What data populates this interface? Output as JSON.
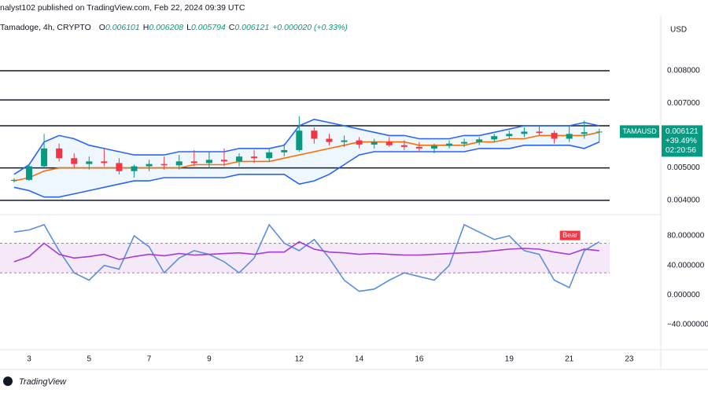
{
  "header": {
    "published": "nalyst102 published on TradingView.com, Feb 22, 2024 09:39 UTC",
    "symbol": "Tamadoge, 4h, CRYPTO",
    "ohlc": [
      {
        "label": "O",
        "value": "0.006101"
      },
      {
        "label": "H",
        "value": "0.006208"
      },
      {
        "label": "L",
        "value": "0.005794"
      },
      {
        "label": "C",
        "value": "0.006121"
      }
    ],
    "change": "+0.000020 (+0.33%)",
    "currency": "USD"
  },
  "footer": {
    "brand": "TradingView"
  },
  "chart_data": [
    {
      "type": "candlestick",
      "xlim": [
        2.03,
        24.05
      ],
      "ylim": [
        0.00368,
        0.00965
      ],
      "yticks": [
        {
          "value": 0.008,
          "label": "0.008000"
        },
        {
          "value": 0.007,
          "label": "0.007000"
        },
        {
          "value": 0.005,
          "label": "0.005000"
        },
        {
          "value": 0.004,
          "label": "0.004000"
        }
      ],
      "hlines": [
        0.008,
        0.0071,
        0.0063,
        0.005,
        0.004
      ],
      "x": [
        2.5,
        3,
        3.5,
        4,
        4.5,
        5,
        5.5,
        6,
        6.5,
        7,
        7.5,
        8,
        8.5,
        9,
        9.5,
        10,
        10.5,
        11,
        11.5,
        12,
        12.5,
        13,
        13.5,
        14,
        14.5,
        15,
        15.5,
        16,
        16.5,
        17,
        17.5,
        18,
        18.5,
        19,
        19.5,
        20,
        20.5,
        21,
        21.5,
        22
      ],
      "open": [
        0.0046,
        0.00463,
        0.00505,
        0.0056,
        0.0053,
        0.00512,
        0.0052,
        0.00515,
        0.0049,
        0.00505,
        0.00512,
        0.00508,
        0.0052,
        0.00515,
        0.00525,
        0.0052,
        0.00535,
        0.0053,
        0.00548,
        0.00555,
        0.00615,
        0.0059,
        0.0058,
        0.00585,
        0.00572,
        0.0058,
        0.0057,
        0.00565,
        0.0056,
        0.00568,
        0.00575,
        0.0058,
        0.00588,
        0.00598,
        0.00605,
        0.00612,
        0.00608,
        0.0059,
        0.00605,
        0.006101
      ],
      "high": [
        0.00468,
        0.0051,
        0.00605,
        0.00575,
        0.00545,
        0.00535,
        0.0056,
        0.0053,
        0.0051,
        0.00525,
        0.00535,
        0.0054,
        0.00555,
        0.0055,
        0.0056,
        0.00545,
        0.00555,
        0.0056,
        0.00575,
        0.0066,
        0.00625,
        0.00605,
        0.006,
        0.00595,
        0.0059,
        0.00595,
        0.00585,
        0.0058,
        0.00575,
        0.00585,
        0.0059,
        0.00595,
        0.00605,
        0.00615,
        0.00625,
        0.0063,
        0.00615,
        0.0063,
        0.00645,
        0.006208
      ],
      "low": [
        0.00455,
        0.0046,
        0.005,
        0.0052,
        0.005,
        0.00495,
        0.00505,
        0.0048,
        0.0047,
        0.0049,
        0.00495,
        0.00495,
        0.00505,
        0.005,
        0.00505,
        0.00505,
        0.00515,
        0.0052,
        0.00535,
        0.0055,
        0.00575,
        0.0057,
        0.00565,
        0.0056,
        0.0056,
        0.00565,
        0.00555,
        0.0055,
        0.00545,
        0.0056,
        0.00565,
        0.0057,
        0.00578,
        0.0059,
        0.00595,
        0.006,
        0.00575,
        0.0058,
        0.0059,
        0.005794
      ],
      "close": [
        0.00463,
        0.00505,
        0.0056,
        0.0053,
        0.00512,
        0.0052,
        0.00515,
        0.0049,
        0.00505,
        0.00512,
        0.00508,
        0.0052,
        0.00515,
        0.00525,
        0.0052,
        0.00535,
        0.0053,
        0.00548,
        0.00555,
        0.00615,
        0.0059,
        0.0058,
        0.00585,
        0.00572,
        0.0058,
        0.0057,
        0.00565,
        0.0056,
        0.00568,
        0.00575,
        0.0058,
        0.00588,
        0.00598,
        0.00605,
        0.00612,
        0.00608,
        0.0059,
        0.00605,
        0.006101,
        0.006121
      ],
      "up_color": "#089981",
      "down_color": "#f23645",
      "series": [
        {
          "color": "#2962ff",
          "values": [
            0.0048,
            0.0051,
            0.0058,
            0.006,
            0.0059,
            0.0057,
            0.0056,
            0.0055,
            0.0054,
            0.0054,
            0.0054,
            0.0055,
            0.0055,
            0.0055,
            0.0055,
            0.0056,
            0.0056,
            0.0056,
            0.0057,
            0.0063,
            0.0065,
            0.0064,
            0.0063,
            0.0062,
            0.0061,
            0.006,
            0.006,
            0.0059,
            0.0059,
            0.0059,
            0.006,
            0.006,
            0.0061,
            0.0062,
            0.0063,
            0.0063,
            0.0063,
            0.0063,
            0.0064,
            0.0063
          ]
        },
        {
          "color": "#ff6d00",
          "values": [
            0.0046,
            0.0047,
            0.0049,
            0.005,
            0.005,
            0.005,
            0.005,
            0.005,
            0.005,
            0.005,
            0.005,
            0.005,
            0.0051,
            0.0051,
            0.0051,
            0.0052,
            0.0052,
            0.0052,
            0.0053,
            0.0054,
            0.0055,
            0.0056,
            0.0057,
            0.0058,
            0.0058,
            0.0058,
            0.0058,
            0.0057,
            0.0057,
            0.0057,
            0.0057,
            0.0058,
            0.0058,
            0.0059,
            0.0059,
            0.006,
            0.006,
            0.006,
            0.006,
            0.0061
          ]
        },
        {
          "color": "#2962ff",
          "values": [
            0.0044,
            0.0043,
            0.0041,
            0.0041,
            0.0042,
            0.0043,
            0.0044,
            0.0045,
            0.0046,
            0.0046,
            0.0047,
            0.0047,
            0.0047,
            0.0047,
            0.0047,
            0.0048,
            0.0048,
            0.0048,
            0.0048,
            0.0045,
            0.0046,
            0.0048,
            0.0051,
            0.0054,
            0.0055,
            0.0055,
            0.0055,
            0.0055,
            0.0055,
            0.0055,
            0.0055,
            0.0056,
            0.0056,
            0.0056,
            0.0057,
            0.0057,
            0.0057,
            0.0057,
            0.0056,
            0.0058
          ]
        }
      ],
      "last_symbol": "TAMAUSD",
      "last_change": "+39.49%",
      "countdown": "02:20:56"
    },
    {
      "type": "line",
      "xlim": [
        2.03,
        24.05
      ],
      "ylim": [
        -68.7,
        103.4
      ],
      "yticks": [
        {
          "value": 80,
          "label": "80.000000"
        },
        {
          "value": 40,
          "label": "40.000000"
        },
        {
          "value": 0,
          "label": "0.000000"
        },
        {
          "value": -40,
          "label": "−40.000000"
        }
      ],
      "xticks": [
        3,
        5,
        7,
        9,
        12,
        14,
        16,
        19,
        21,
        23
      ],
      "bands": [
        30,
        70
      ],
      "x": [
        2.5,
        3,
        3.5,
        4,
        4.5,
        5,
        5.5,
        6,
        6.5,
        7,
        7.5,
        8,
        8.5,
        9,
        9.5,
        10,
        10.5,
        11,
        11.5,
        12,
        12.5,
        13,
        13.5,
        14,
        14.5,
        15,
        15.5,
        16,
        16.5,
        17,
        17.5,
        18,
        18.5,
        19,
        19.5,
        20,
        20.5,
        21,
        21.5,
        22
      ],
      "series": [
        {
          "color": "#5b8fdc",
          "values": [
            85,
            88,
            95,
            60,
            30,
            20,
            40,
            35,
            80,
            65,
            30,
            50,
            60,
            55,
            45,
            30,
            50,
            95,
            70,
            60,
            75,
            50,
            20,
            5,
            8,
            20,
            30,
            25,
            20,
            40,
            95,
            85,
            75,
            80,
            60,
            55,
            20,
            10,
            60,
            72
          ]
        },
        {
          "color": "#a63ad8",
          "values": [
            45,
            52,
            70,
            55,
            50,
            52,
            55,
            48,
            52,
            55,
            53,
            56,
            54,
            55,
            56,
            57,
            55,
            58,
            58,
            72,
            62,
            58,
            57,
            55,
            56,
            55,
            54,
            54,
            55,
            56,
            57,
            58,
            60,
            62,
            63,
            62,
            58,
            55,
            62,
            60
          ]
        }
      ],
      "annotation": {
        "text": "Bear",
        "x": 21,
        "y": 72
      }
    }
  ]
}
